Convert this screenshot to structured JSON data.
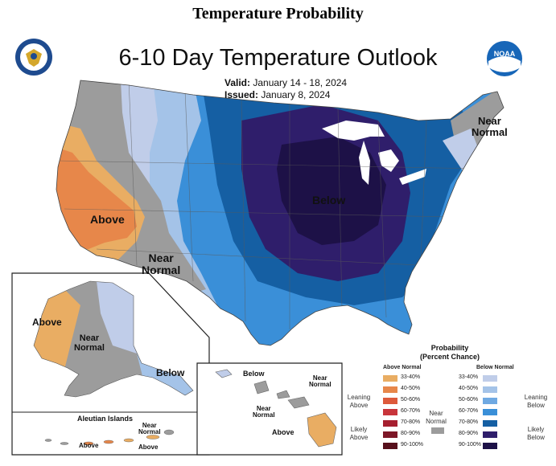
{
  "header": {
    "page_title": "Temperature Probability",
    "map_title": "6-10 Day Temperature Outlook",
    "valid_label": "Valid:",
    "valid_value": "January 14 - 18, 2024",
    "issued_label": "Issued:",
    "issued_value": "January 8, 2024"
  },
  "logos": {
    "left": "doc-seal",
    "right_text": "NOAA"
  },
  "map_labels": {
    "conus_below": "Below",
    "conus_above": "Above",
    "conus_near_normal_west_1": "Near",
    "conus_near_normal_west_2": "Normal",
    "conus_near_normal_ne_1": "Near",
    "conus_near_normal_ne_2": "Normal",
    "alaska_above": "Above",
    "alaska_near_normal_1": "Near",
    "alaska_near_normal_2": "Normal",
    "alaska_below": "Below",
    "aleutian_title": "Aleutian Islands",
    "aleutian_near_normal_1": "Near",
    "aleutian_near_normal_2": "Normal",
    "aleutian_above_1": "Above",
    "aleutian_above_2": "Above",
    "hawaii_below": "Below",
    "hawaii_near_normal_a_1": "Near",
    "hawaii_near_normal_a_2": "Normal",
    "hawaii_near_normal_b_1": "Near",
    "hawaii_near_normal_b_2": "Normal",
    "hawaii_above": "Above"
  },
  "legend": {
    "title_1": "Probability",
    "title_2": "(Percent Chance)",
    "above_header": "Above Normal",
    "below_header": "Below Normal",
    "near_label_1": "Near",
    "near_label_2": "Normal",
    "near_color": "#9c9c9c",
    "leaning_above_1": "Leaning",
    "leaning_above_2": "Above",
    "likely_above_1": "Likely",
    "likely_above_2": "Above",
    "leaning_below_1": "Leaning",
    "leaning_below_2": "Below",
    "likely_below_1": "Likely",
    "likely_below_2": "Below",
    "above_rows": [
      {
        "label": "33-40%",
        "color": "#e9ad63"
      },
      {
        "label": "40-50%",
        "color": "#e7874a"
      },
      {
        "label": "50-60%",
        "color": "#dd5a3c"
      },
      {
        "label": "60-70%",
        "color": "#c8353b"
      },
      {
        "label": "70-80%",
        "color": "#a61f2f"
      },
      {
        "label": "80-90%",
        "color": "#7d1727"
      },
      {
        "label": "90-100%",
        "color": "#57101c"
      }
    ],
    "below_rows": [
      {
        "label": "33-40%",
        "color": "#c0cde9"
      },
      {
        "label": "40-50%",
        "color": "#a4c3e8"
      },
      {
        "label": "50-60%",
        "color": "#6fa9e2"
      },
      {
        "label": "60-70%",
        "color": "#3a8fd8"
      },
      {
        "label": "70-80%",
        "color": "#155fa3"
      },
      {
        "label": "80-90%",
        "color": "#2f1e6b"
      },
      {
        "label": "90-100%",
        "color": "#1d1147"
      }
    ]
  }
}
